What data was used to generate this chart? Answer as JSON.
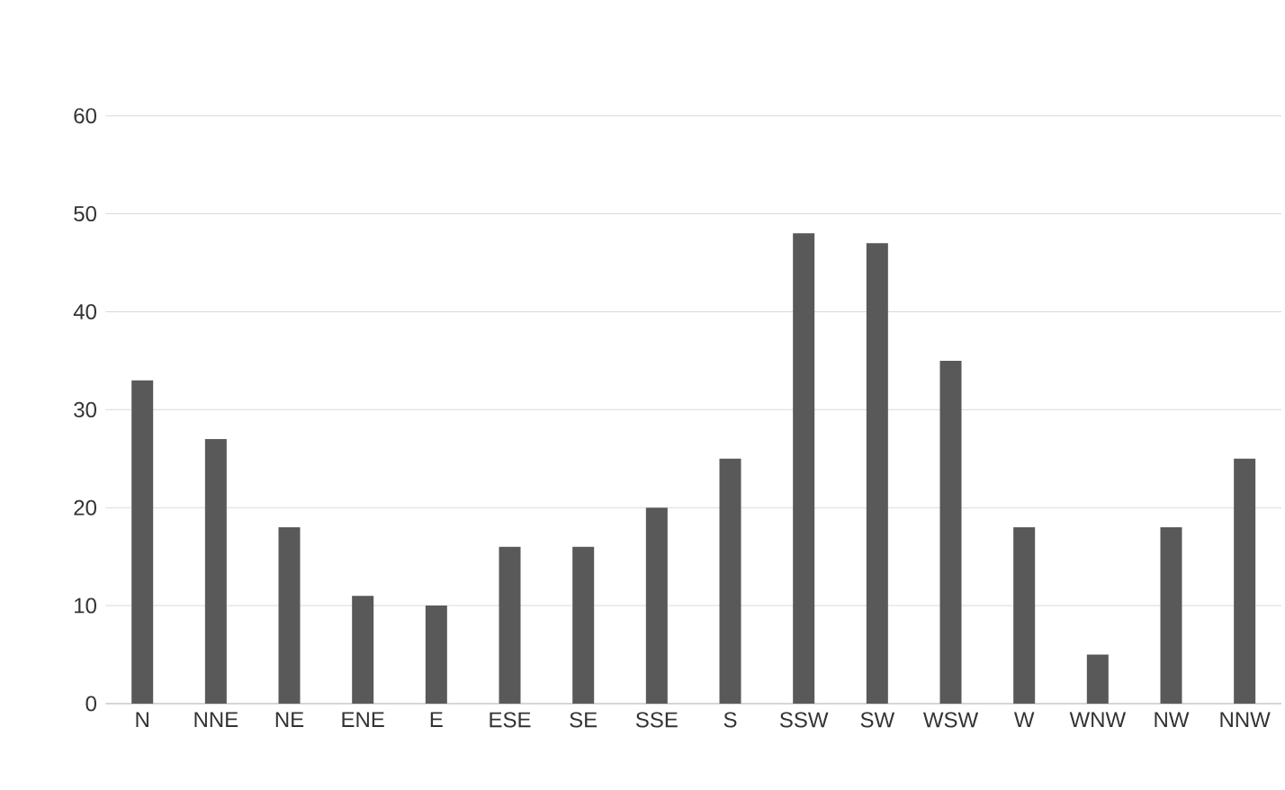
{
  "chart_data": {
    "type": "bar",
    "categories": [
      "N",
      "NNE",
      "NE",
      "ENE",
      "E",
      "ESE",
      "SE",
      "SSE",
      "S",
      "SSW",
      "SW",
      "WSW",
      "W",
      "WNW",
      "NW",
      "NNW"
    ],
    "values": [
      33,
      27,
      18,
      11,
      10,
      16,
      16,
      20,
      25,
      48,
      47,
      35,
      18,
      5,
      18,
      25
    ],
    "color": "#595959",
    "ylim": [
      0,
      60
    ],
    "yticks": [
      0,
      10,
      20,
      30,
      40,
      50,
      60
    ],
    "grid": "y"
  }
}
